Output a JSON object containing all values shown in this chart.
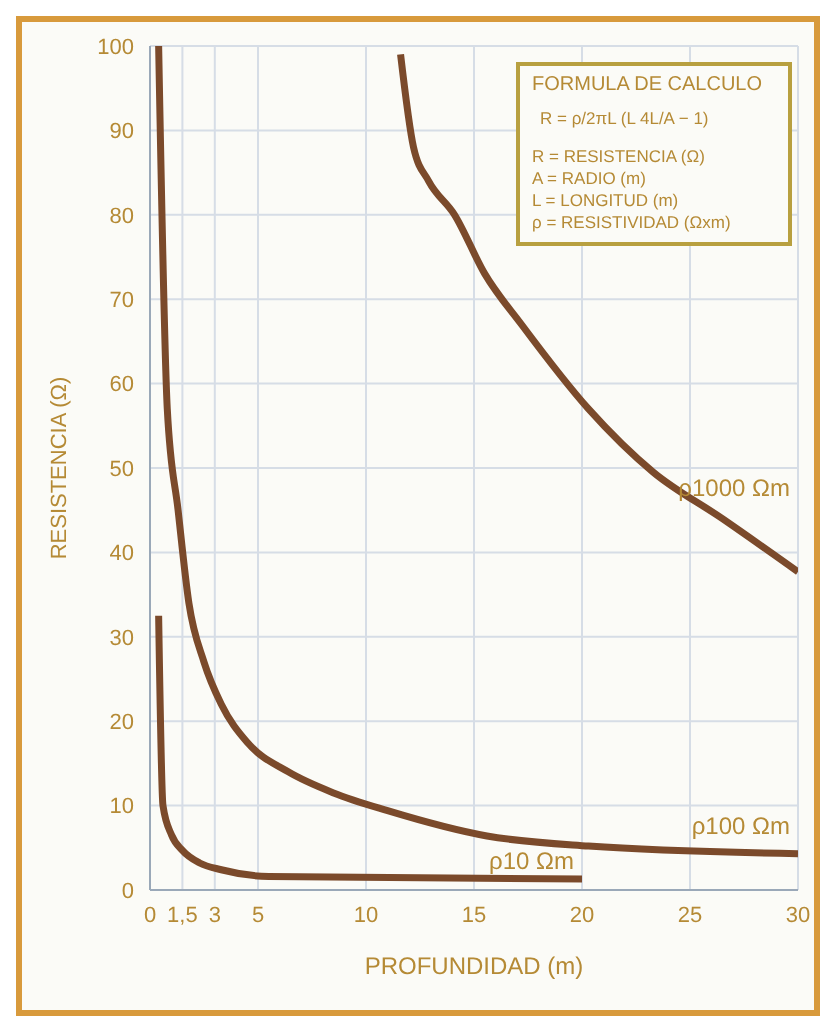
{
  "chart_data": {
    "type": "line",
    "xlabel": "PROFUNDIDAD (m)",
    "ylabel": "RESISTENCIA (Ω)",
    "xlim": [
      0,
      30
    ],
    "xticks": [
      0,
      {
        "value": 1.5,
        "label": "1,5"
      },
      3,
      5,
      10,
      15,
      20,
      25,
      30
    ],
    "ylim": [
      0,
      100
    ],
    "yticks": [
      0,
      10,
      20,
      30,
      40,
      50,
      60,
      70,
      80,
      90,
      100
    ],
    "grid": true,
    "marker": "none",
    "line_style": "solid",
    "series": [
      {
        "name": "ρ1000 Ωm",
        "color": "#7b4a2b",
        "x": [
          11.6,
          12.2,
          12.9,
          14.1,
          15.5,
          17.2,
          20.3,
          23.3,
          26.5,
          30
        ],
        "values": [
          99,
          88,
          84,
          80,
          73,
          67,
          57,
          49.5,
          44,
          37.7
        ]
      },
      {
        "name": "ρ100 Ωm",
        "color": "#7b4a2b",
        "x": [
          0.4,
          0.8,
          1.3,
          1.8,
          2.5,
          3.3,
          4.5,
          6.4,
          8.5,
          11,
          15.6,
          20.3,
          30
        ],
        "values": [
          100,
          57,
          45,
          34,
          27,
          22,
          17.5,
          14,
          11.5,
          9.4,
          6.4,
          5.2,
          4.3
        ]
      },
      {
        "name": "ρ10 Ωm",
        "color": "#7b4a2b",
        "x": [
          0.4,
          0.6,
          1,
          1.5,
          2.3,
          3.3,
          5.5,
          20
        ],
        "values": [
          32.5,
          10,
          6.5,
          4.7,
          3.2,
          2.4,
          1.6,
          1.3
        ]
      }
    ],
    "annotations": [
      "FORMULA DE CALCULO",
      "R = ρ/2πL (L 4L/A − 1)",
      "R = RESISTENCIA (Ω)",
      "A = RADIO (m)",
      "L = LONGITUD (m)",
      "ρ = RESISTIVIDAD (Ωxm)"
    ]
  }
}
